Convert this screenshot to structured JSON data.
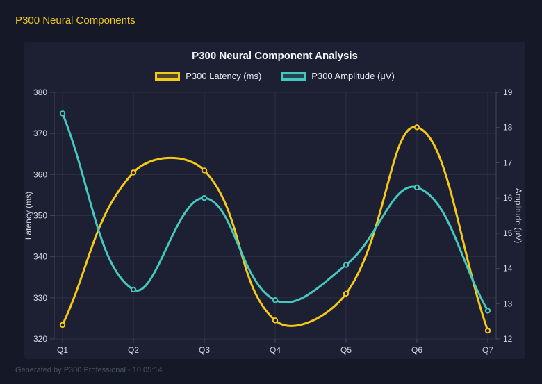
{
  "header": {
    "title": "P300 Neural Components"
  },
  "footer": {
    "text": "Generated by P300 Professional - 10:05:14"
  },
  "chart_data": {
    "type": "line",
    "title": "P300 Neural Component Analysis",
    "categories": [
      "Q1",
      "Q2",
      "Q3",
      "Q4",
      "Q5",
      "Q6",
      "Q7"
    ],
    "series": [
      {
        "name": "P300 Latency (ms)",
        "color": "#f5c918",
        "axis": "left",
        "values": [
          323.4,
          360.5,
          361.0,
          324.5,
          331.0,
          371.5,
          322.0
        ]
      },
      {
        "name": "P300 Amplitude (μV)",
        "color": "#45c8c0",
        "axis": "right",
        "values": [
          18.4,
          13.4,
          16.0,
          13.1,
          14.1,
          16.3,
          12.8
        ]
      }
    ],
    "left_axis": {
      "label": "Latency (ms)",
      "min": 320,
      "max": 380,
      "step": 10
    },
    "right_axis": {
      "label": "Amplitude (μV)",
      "min": 12,
      "max": 19,
      "step": 1
    },
    "grid": true,
    "legend_position": "top",
    "line_tension": 0.4
  }
}
